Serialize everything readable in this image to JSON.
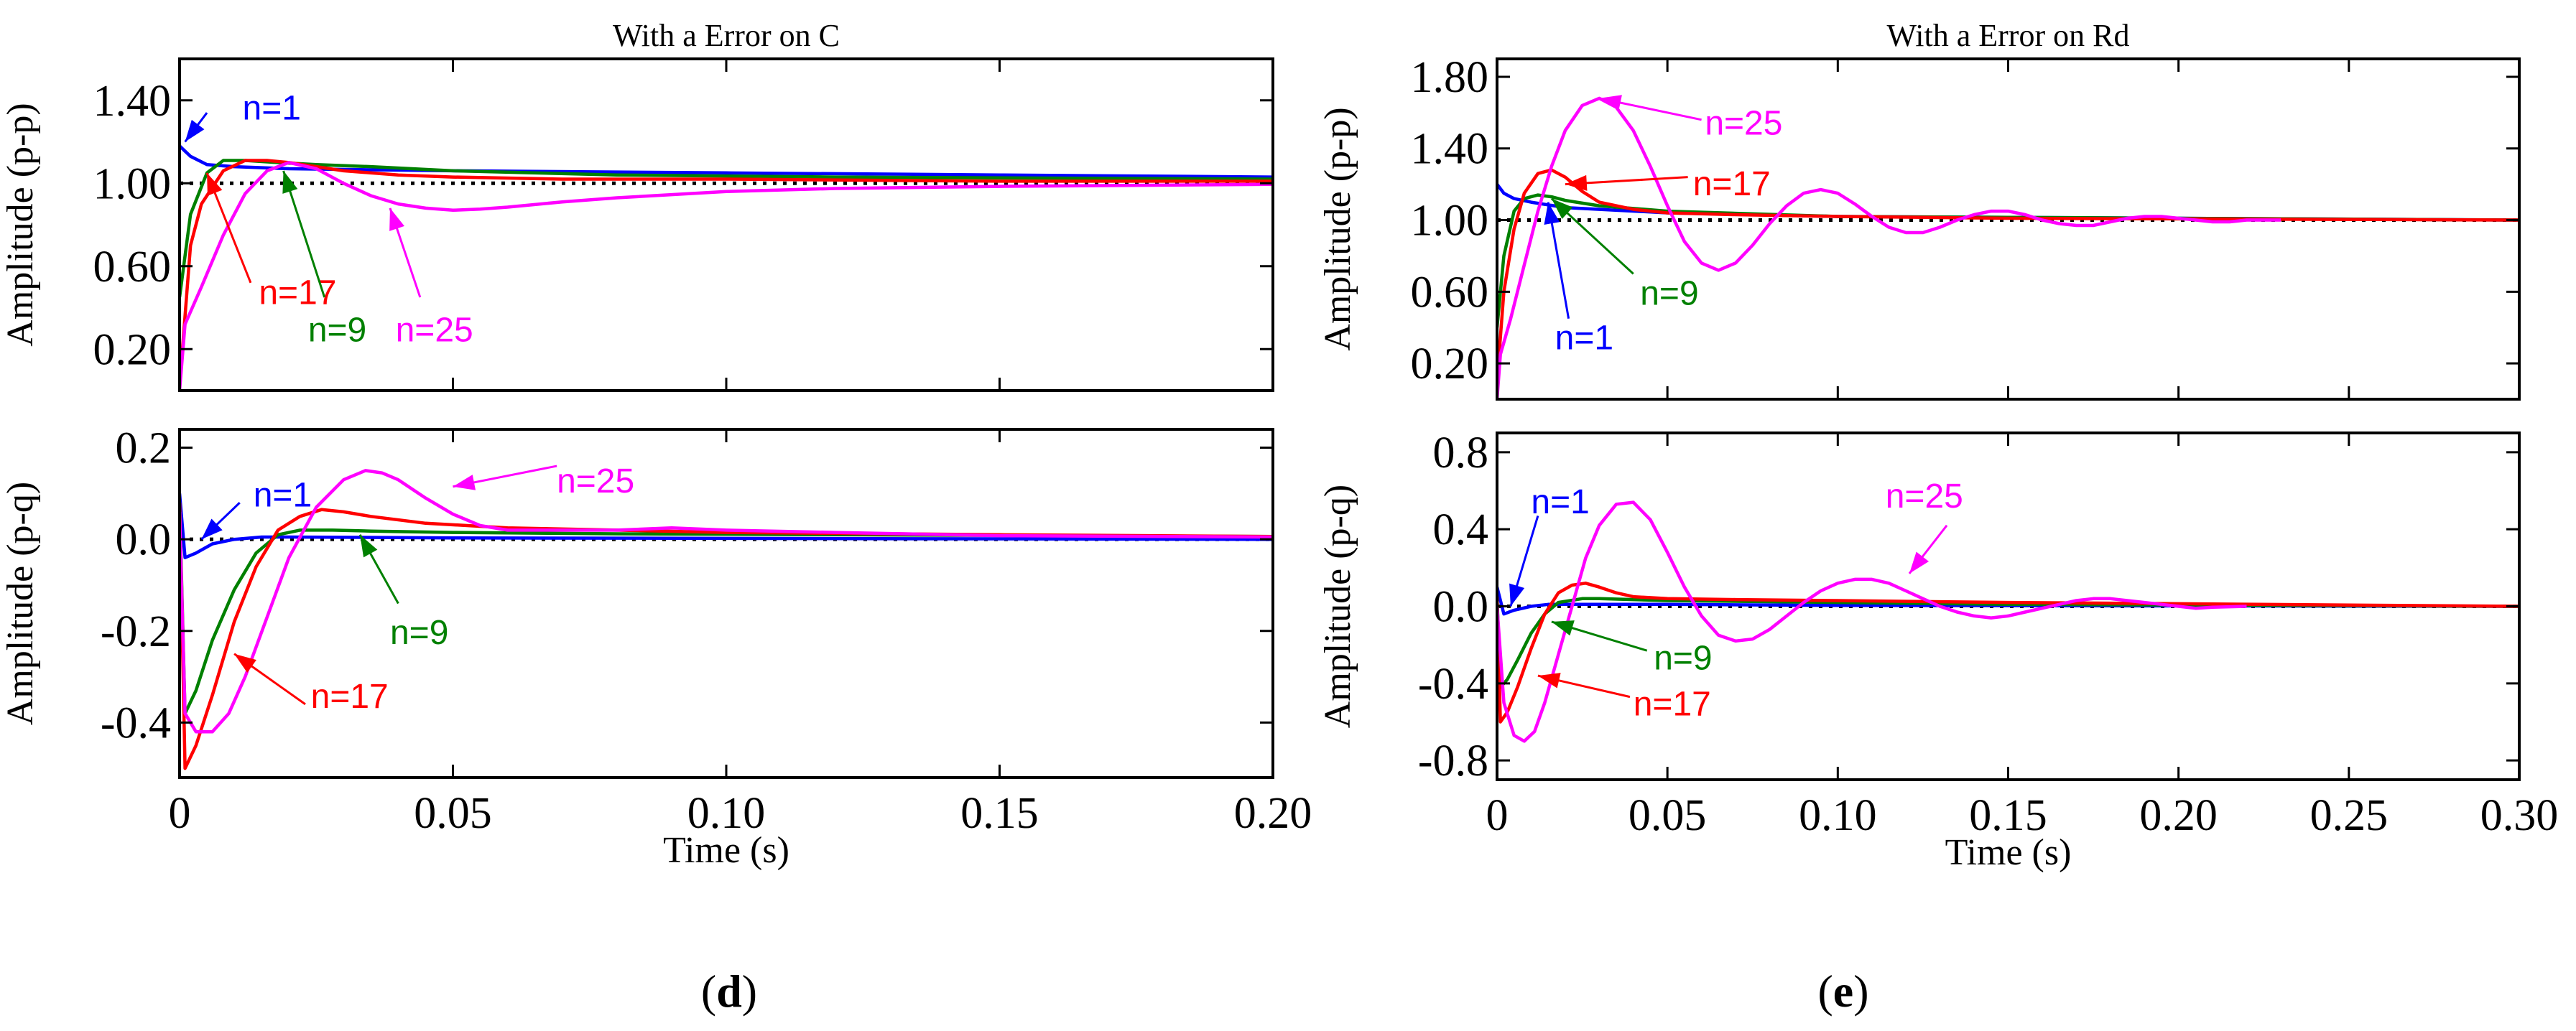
{
  "colors": {
    "n1": "#0000ff",
    "n9": "#008000",
    "n17": "#ff0000",
    "n25": "#ff00ff",
    "reference": "#000000"
  },
  "chart_data": [
    {
      "id": "d_top",
      "type": "line",
      "title": "With a Error on C",
      "ylabel": "Amplitude (p-p)",
      "xlabel": "",
      "xlim": [
        0,
        0.2
      ],
      "ylim": [
        0,
        1.6
      ],
      "yticks": [
        0.2,
        0.6,
        1.0,
        1.4
      ],
      "ytick_labels": [
        "0.20",
        "0.60",
        "1.00",
        "1.40"
      ],
      "xticks": [
        0,
        0.05,
        0.1,
        0.15,
        0.2
      ],
      "xtick_labels": [],
      "reference": 1.0,
      "series": [
        {
          "name": "n=1",
          "color": "#0000ff",
          "x": [
            0,
            0.002,
            0.005,
            0.01,
            0.02,
            0.05,
            0.1,
            0.15,
            0.2
          ],
          "y": [
            1.18,
            1.13,
            1.09,
            1.08,
            1.07,
            1.06,
            1.05,
            1.04,
            1.03
          ]
        },
        {
          "name": "n=9",
          "color": "#008000",
          "x": [
            0,
            0.002,
            0.005,
            0.008,
            0.012,
            0.018,
            0.025,
            0.035,
            0.05,
            0.08,
            0.12,
            0.2
          ],
          "y": [
            0.45,
            0.85,
            1.05,
            1.11,
            1.11,
            1.1,
            1.09,
            1.08,
            1.06,
            1.04,
            1.03,
            1.02
          ]
        },
        {
          "name": "n=17",
          "color": "#ff0000",
          "x": [
            0,
            0.002,
            0.004,
            0.008,
            0.012,
            0.016,
            0.02,
            0.025,
            0.03,
            0.04,
            0.05,
            0.07,
            0.1,
            0.15,
            0.2
          ],
          "y": [
            0.02,
            0.7,
            0.9,
            1.06,
            1.11,
            1.11,
            1.1,
            1.08,
            1.06,
            1.04,
            1.03,
            1.02,
            1.02,
            1.01,
            1.01
          ]
        },
        {
          "name": "n=25",
          "color": "#ff00ff",
          "x": [
            0,
            0.001,
            0.004,
            0.008,
            0.012,
            0.016,
            0.02,
            0.025,
            0.03,
            0.035,
            0.04,
            0.045,
            0.05,
            0.055,
            0.06,
            0.07,
            0.08,
            0.1,
            0.12,
            0.15,
            0.2
          ],
          "y": [
            0,
            0.32,
            0.5,
            0.75,
            0.95,
            1.06,
            1.1,
            1.07,
            1.0,
            0.94,
            0.9,
            0.88,
            0.87,
            0.875,
            0.885,
            0.91,
            0.93,
            0.96,
            0.975,
            0.985,
            0.995
          ]
        }
      ],
      "annotations": [
        {
          "text": "n=1",
          "series": "n=1",
          "x": 0.0115,
          "y": 1.37,
          "ax": 0.005,
          "ay": 1.34,
          "tx": 0.001,
          "ty": 1.2
        },
        {
          "text": "n=17",
          "series": "n=17",
          "x": 0.0145,
          "y": 0.48,
          "ax": 0.013,
          "ay": 0.52,
          "tx": 0.005,
          "ty": 1.05
        },
        {
          "text": "n=9",
          "series": "n=9",
          "x": 0.0235,
          "y": 0.3,
          "ax": 0.0265,
          "ay": 0.45,
          "tx": 0.019,
          "ty": 1.06
        },
        {
          "text": "n=25",
          "series": "n=25",
          "x": 0.0395,
          "y": 0.3,
          "ax": 0.044,
          "ay": 0.45,
          "tx": 0.0385,
          "ty": 0.88
        }
      ]
    },
    {
      "id": "d_bottom",
      "type": "line",
      "title": "",
      "ylabel": "Amplitude (p-q)",
      "xlabel": "Time (s)",
      "xlim": [
        0,
        0.2
      ],
      "ylim": [
        -0.52,
        0.24
      ],
      "yticks": [
        -0.4,
        -0.2,
        0.0,
        0.2
      ],
      "ytick_labels": [
        "-0.4",
        "-0.2",
        "0.0",
        "0.2"
      ],
      "xticks": [
        0,
        0.05,
        0.1,
        0.15,
        0.2
      ],
      "xtick_labels": [
        "0",
        "0.05",
        "0.10",
        "0.15",
        "0.20"
      ],
      "reference": 0.0,
      "series": [
        {
          "name": "n=1",
          "color": "#0000ff",
          "x": [
            0,
            0.001,
            0.003,
            0.006,
            0.01,
            0.015,
            0.02,
            0.05,
            0.1,
            0.2
          ],
          "y": [
            0.1,
            -0.04,
            -0.03,
            -0.01,
            0.0,
            0.005,
            0.005,
            0.003,
            0.002,
            0.0
          ]
        },
        {
          "name": "n=9",
          "color": "#008000",
          "x": [
            0,
            0.001,
            0.003,
            0.006,
            0.01,
            0.014,
            0.018,
            0.022,
            0.028,
            0.035,
            0.05,
            0.08,
            0.12,
            0.2
          ],
          "y": [
            0.08,
            -0.38,
            -0.33,
            -0.22,
            -0.11,
            -0.03,
            0.01,
            0.02,
            0.02,
            0.018,
            0.015,
            0.012,
            0.01,
            0.006
          ]
        },
        {
          "name": "n=17",
          "color": "#ff0000",
          "x": [
            0,
            0.001,
            0.003,
            0.006,
            0.01,
            0.014,
            0.018,
            0.022,
            0.026,
            0.03,
            0.035,
            0.045,
            0.06,
            0.08,
            0.1,
            0.15,
            0.2
          ],
          "y": [
            0.08,
            -0.5,
            -0.45,
            -0.34,
            -0.18,
            -0.06,
            0.02,
            0.05,
            0.065,
            0.06,
            0.05,
            0.035,
            0.025,
            0.02,
            0.015,
            0.01,
            0.006
          ]
        },
        {
          "name": "n=25",
          "color": "#ff00ff",
          "x": [
            0,
            0.001,
            0.003,
            0.006,
            0.009,
            0.012,
            0.016,
            0.02,
            0.025,
            0.03,
            0.034,
            0.037,
            0.04,
            0.045,
            0.05,
            0.055,
            0.06,
            0.07,
            0.08,
            0.09,
            0.1,
            0.12,
            0.15,
            0.2
          ],
          "y": [
            0.06,
            -0.38,
            -0.42,
            -0.42,
            -0.38,
            -0.3,
            -0.17,
            -0.04,
            0.07,
            0.13,
            0.15,
            0.145,
            0.13,
            0.09,
            0.055,
            0.03,
            0.02,
            0.02,
            0.02,
            0.025,
            0.02,
            0.015,
            0.008,
            0.005
          ]
        }
      ],
      "annotations": [
        {
          "text": "n=1",
          "series": "n=1",
          "x": 0.0135,
          "y": 0.1,
          "ax": 0.011,
          "ay": 0.08,
          "tx": 0.004,
          "ty": 0.0
        },
        {
          "text": "n=25",
          "series": "n=25",
          "x": 0.069,
          "y": 0.13,
          "ax": 0.069,
          "ay": 0.16,
          "tx": 0.05,
          "ty": 0.115
        },
        {
          "text": "n=9",
          "series": "n=9",
          "x": 0.0385,
          "y": -0.2,
          "ax": 0.04,
          "ay": -0.14,
          "tx": 0.033,
          "ty": 0.01
        },
        {
          "text": "n=17",
          "series": "n=17",
          "x": 0.024,
          "y": -0.34,
          "ax": 0.023,
          "ay": -0.36,
          "tx": 0.01,
          "ty": -0.25
        }
      ]
    },
    {
      "id": "e_top",
      "type": "line",
      "title": "With a Error on Rd",
      "ylabel": "Amplitude (p-p)",
      "xlabel": "",
      "xlim": [
        0,
        0.3
      ],
      "ylim": [
        0,
        1.9
      ],
      "yticks": [
        0.2,
        0.6,
        1.0,
        1.4,
        1.8
      ],
      "ytick_labels": [
        "0.20",
        "0.60",
        "1.00",
        "1.40",
        "1.80"
      ],
      "xticks": [
        0,
        0.05,
        0.1,
        0.15,
        0.2,
        0.25,
        0.3
      ],
      "xtick_labels": [],
      "reference": 1.0,
      "series": [
        {
          "name": "n=1",
          "color": "#0000ff",
          "x": [
            0,
            0.002,
            0.005,
            0.01,
            0.02,
            0.05,
            0.1,
            0.2,
            0.3
          ],
          "y": [
            1.2,
            1.15,
            1.12,
            1.1,
            1.07,
            1.04,
            1.02,
            1.01,
            1.0
          ]
        },
        {
          "name": "n=9",
          "color": "#008000",
          "x": [
            0,
            0.002,
            0.005,
            0.008,
            0.012,
            0.016,
            0.02,
            0.03,
            0.05,
            0.1,
            0.2,
            0.3
          ],
          "y": [
            0.4,
            0.8,
            1.05,
            1.12,
            1.14,
            1.13,
            1.11,
            1.08,
            1.05,
            1.02,
            1.01,
            1.0
          ]
        },
        {
          "name": "n=17",
          "color": "#ff0000",
          "x": [
            0,
            0.002,
            0.005,
            0.008,
            0.012,
            0.016,
            0.02,
            0.025,
            0.03,
            0.04,
            0.05,
            0.07,
            0.1,
            0.15,
            0.3
          ],
          "y": [
            0.1,
            0.6,
            0.95,
            1.15,
            1.26,
            1.28,
            1.24,
            1.16,
            1.1,
            1.06,
            1.04,
            1.03,
            1.02,
            1.01,
            1.0
          ]
        },
        {
          "name": "n=25",
          "color": "#ff00ff",
          "x": [
            0,
            0.001,
            0.004,
            0.008,
            0.012,
            0.016,
            0.02,
            0.025,
            0.03,
            0.035,
            0.04,
            0.045,
            0.05,
            0.055,
            0.06,
            0.065,
            0.07,
            0.075,
            0.08,
            0.085,
            0.09,
            0.095,
            0.1,
            0.105,
            0.11,
            0.115,
            0.12,
            0.125,
            0.13,
            0.135,
            0.14,
            0.145,
            0.15,
            0.155,
            0.16,
            0.165,
            0.17,
            0.175,
            0.18,
            0.185,
            0.19,
            0.195,
            0.2,
            0.205,
            0.21,
            0.215,
            0.22,
            0.23
          ],
          "y": [
            0,
            0.25,
            0.45,
            0.75,
            1.05,
            1.3,
            1.5,
            1.64,
            1.68,
            1.63,
            1.5,
            1.3,
            1.08,
            0.88,
            0.76,
            0.72,
            0.76,
            0.86,
            0.98,
            1.08,
            1.15,
            1.17,
            1.15,
            1.09,
            1.02,
            0.96,
            0.93,
            0.93,
            0.96,
            1.0,
            1.03,
            1.05,
            1.05,
            1.03,
            1.0,
            0.98,
            0.97,
            0.97,
            0.99,
            1.01,
            1.02,
            1.02,
            1.01,
            1.0,
            0.99,
            0.99,
            1.0,
            1.0
          ]
        }
      ],
      "annotations": [
        {
          "text": "n=25",
          "series": "n=25",
          "x": 0.061,
          "y": 1.55,
          "ax": 0.06,
          "ay": 1.56,
          "tx": 0.03,
          "ty": 1.68
        },
        {
          "text": "n=17",
          "series": "n=17",
          "x": 0.0575,
          "y": 1.21,
          "ax": 0.056,
          "ay": 1.24,
          "tx": 0.02,
          "ty": 1.2
        },
        {
          "text": "n=9",
          "series": "n=9",
          "x": 0.042,
          "y": 0.6,
          "ax": 0.04,
          "ay": 0.7,
          "tx": 0.016,
          "ty": 1.12
        },
        {
          "text": "n=1",
          "series": "n=1",
          "x": 0.017,
          "y": 0.35,
          "ax": 0.021,
          "ay": 0.45,
          "tx": 0.015,
          "ty": 1.1
        }
      ]
    },
    {
      "id": "e_bottom",
      "type": "line",
      "title": "",
      "ylabel": "Amplitude (p-q)",
      "xlabel": "Time (s)",
      "xlim": [
        0,
        0.3
      ],
      "ylim": [
        -0.9,
        0.9
      ],
      "yticks": [
        -0.8,
        -0.4,
        0.0,
        0.4,
        0.8
      ],
      "ytick_labels": [
        "-0.8",
        "-0.4",
        "0.0",
        "0.4",
        "0.8"
      ],
      "xticks": [
        0,
        0.05,
        0.1,
        0.15,
        0.2,
        0.25,
        0.3
      ],
      "xtick_labels": [
        "0",
        "0.05",
        "0.10",
        "0.15",
        "0.20",
        "0.25",
        "0.30"
      ],
      "reference": 0.0,
      "series": [
        {
          "name": "n=1",
          "color": "#0000ff",
          "x": [
            0,
            0.002,
            0.005,
            0.01,
            0.015,
            0.02,
            0.05,
            0.1,
            0.3
          ],
          "y": [
            0.1,
            -0.04,
            -0.02,
            0.0,
            0.01,
            0.01,
            0.01,
            0.005,
            0.0
          ]
        },
        {
          "name": "n=9",
          "color": "#008000",
          "x": [
            0,
            0.001,
            0.003,
            0.006,
            0.01,
            0.014,
            0.018,
            0.025,
            0.03,
            0.05,
            0.1,
            0.15,
            0.3
          ],
          "y": [
            0.05,
            -0.42,
            -0.38,
            -0.28,
            -0.14,
            -0.04,
            0.02,
            0.04,
            0.04,
            0.03,
            0.02,
            0.01,
            0.0
          ]
        },
        {
          "name": "n=17",
          "color": "#ff0000",
          "x": [
            0,
            0.001,
            0.003,
            0.006,
            0.01,
            0.014,
            0.018,
            0.022,
            0.026,
            0.03,
            0.035,
            0.04,
            0.05,
            0.07,
            0.1,
            0.15,
            0.3
          ],
          "y": [
            0.05,
            -0.6,
            -0.55,
            -0.42,
            -0.22,
            -0.04,
            0.07,
            0.11,
            0.12,
            0.1,
            0.07,
            0.05,
            0.04,
            0.035,
            0.03,
            0.02,
            0.0
          ]
        },
        {
          "name": "n=25",
          "color": "#ff00ff",
          "x": [
            0,
            0.002,
            0.005,
            0.008,
            0.011,
            0.014,
            0.018,
            0.022,
            0.026,
            0.03,
            0.035,
            0.04,
            0.045,
            0.05,
            0.055,
            0.06,
            0.065,
            0.07,
            0.075,
            0.08,
            0.085,
            0.09,
            0.095,
            0.1,
            0.105,
            0.11,
            0.115,
            0.12,
            0.125,
            0.13,
            0.135,
            0.14,
            0.145,
            0.15,
            0.155,
            0.16,
            0.165,
            0.17,
            0.175,
            0.18,
            0.185,
            0.19,
            0.195,
            0.2,
            0.205,
            0.21,
            0.22
          ],
          "y": [
            0,
            -0.5,
            -0.67,
            -0.7,
            -0.65,
            -0.5,
            -0.25,
            0.0,
            0.25,
            0.42,
            0.53,
            0.54,
            0.45,
            0.28,
            0.1,
            -0.05,
            -0.15,
            -0.18,
            -0.17,
            -0.12,
            -0.05,
            0.02,
            0.08,
            0.12,
            0.14,
            0.14,
            0.12,
            0.08,
            0.04,
            0.0,
            -0.03,
            -0.05,
            -0.06,
            -0.05,
            -0.03,
            -0.01,
            0.01,
            0.03,
            0.04,
            0.04,
            0.03,
            0.02,
            0.01,
            0.0,
            -0.01,
            -0.005,
            0.0
          ]
        }
      ],
      "annotations": [
        {
          "text": "n=1",
          "series": "n=1",
          "x": 0.01,
          "y": 0.55,
          "ax": 0.012,
          "ay": 0.47,
          "tx": 0.004,
          "ty": 0.0
        },
        {
          "text": "n=25",
          "series": "n=25",
          "x": 0.114,
          "y": 0.58,
          "ax": 0.132,
          "ay": 0.42,
          "tx": 0.121,
          "ty": 0.17
        },
        {
          "text": "n=9",
          "series": "n=9",
          "x": 0.046,
          "y": -0.26,
          "ax": 0.044,
          "ay": -0.23,
          "tx": 0.016,
          "ty": -0.08
        },
        {
          "text": "n=17",
          "series": "n=17",
          "x": 0.04,
          "y": -0.5,
          "ax": 0.039,
          "ay": -0.47,
          "tx": 0.012,
          "ty": -0.36
        }
      ]
    }
  ],
  "panel_labels": {
    "d": "d",
    "e": "e"
  }
}
